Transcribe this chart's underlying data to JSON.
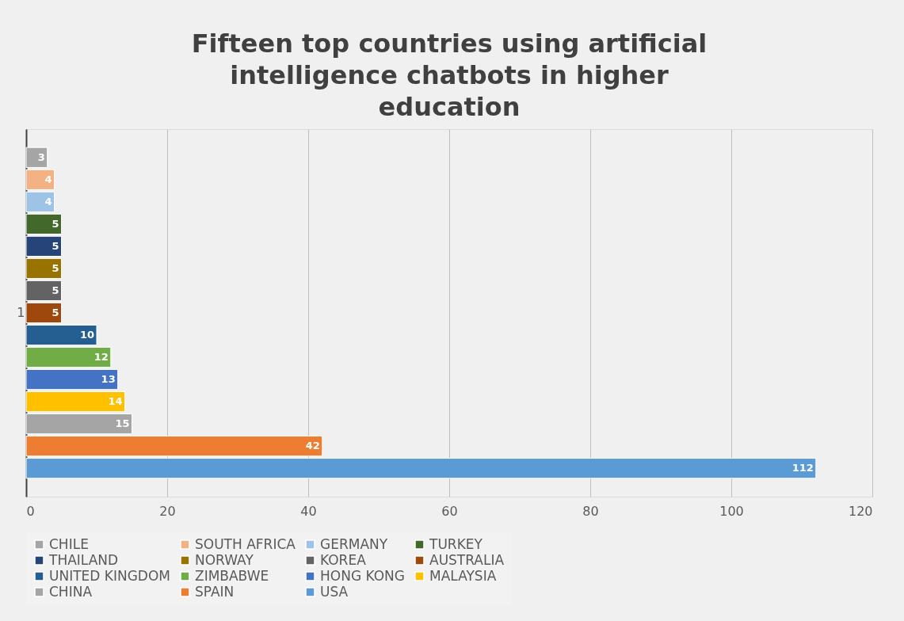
{
  "chart_data": {
    "type": "bar",
    "orientation": "horizontal",
    "title": "Fifteen top countries using artificial intelligence chatbots in higher education",
    "categories": [
      "1"
    ],
    "series": [
      {
        "name": "CHILE",
        "color": "#a5a5a5",
        "values": [
          3
        ]
      },
      {
        "name": "SOUTH AFRICA",
        "color": "#f4b183",
        "values": [
          4
        ]
      },
      {
        "name": "GERMANY",
        "color": "#9dc3e6",
        "values": [
          4
        ]
      },
      {
        "name": "TURKEY",
        "color": "#43682b",
        "values": [
          5
        ]
      },
      {
        "name": "THAILAND",
        "color": "#264478",
        "values": [
          5
        ]
      },
      {
        "name": "NORWAY",
        "color": "#997300",
        "values": [
          5
        ]
      },
      {
        "name": "KOREA",
        "color": "#636363",
        "values": [
          5
        ]
      },
      {
        "name": "AUSTRALIA",
        "color": "#9e480e",
        "values": [
          5
        ]
      },
      {
        "name": "UNITED KINGDOM",
        "color": "#255e91",
        "values": [
          10
        ]
      },
      {
        "name": "ZIMBABWE",
        "color": "#70ad47",
        "values": [
          12
        ]
      },
      {
        "name": "HONG KONG",
        "color": "#4472c4",
        "values": [
          13
        ]
      },
      {
        "name": "MALAYSIA",
        "color": "#ffc000",
        "values": [
          14
        ]
      },
      {
        "name": "CHINA",
        "color": "#a5a5a5",
        "values": [
          15
        ]
      },
      {
        "name": "SPAIN",
        "color": "#ed7d31",
        "values": [
          42
        ]
      },
      {
        "name": "USA",
        "color": "#5b9bd5",
        "values": [
          112
        ]
      }
    ],
    "xlim": [
      0,
      120
    ],
    "xticks": [
      0,
      20,
      40,
      60,
      80,
      100,
      120
    ],
    "grid": "x",
    "legend": "bottom",
    "data_labels": true
  }
}
